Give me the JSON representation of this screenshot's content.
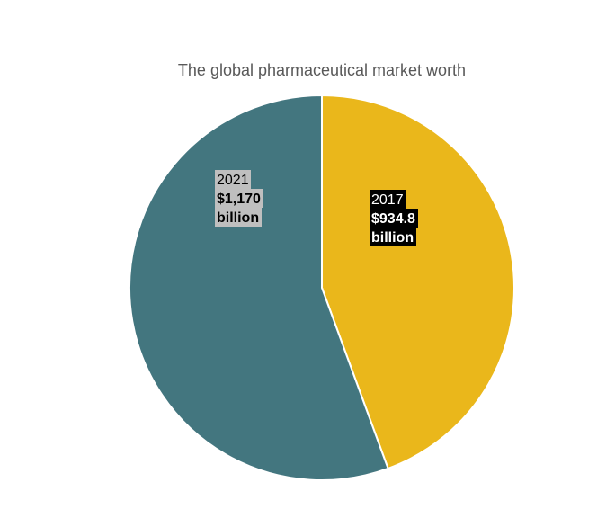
{
  "chart_data": {
    "type": "pie",
    "title": "The global pharmaceutical market worth",
    "start_angle_deg": 0,
    "direction": "clockwise",
    "slices": [
      {
        "year": "2017",
        "amount": "$934.8",
        "unit": "billion",
        "value": 934.8,
        "color": "#EAB71B",
        "label_bg": "#000000",
        "label_fg": "#ffffff"
      },
      {
        "year": "2021",
        "amount": "$1,170",
        "unit": "billion",
        "value": 1170,
        "color": "#43767F",
        "label_bg": "#BFBFBF",
        "label_fg": "#000000"
      }
    ]
  }
}
